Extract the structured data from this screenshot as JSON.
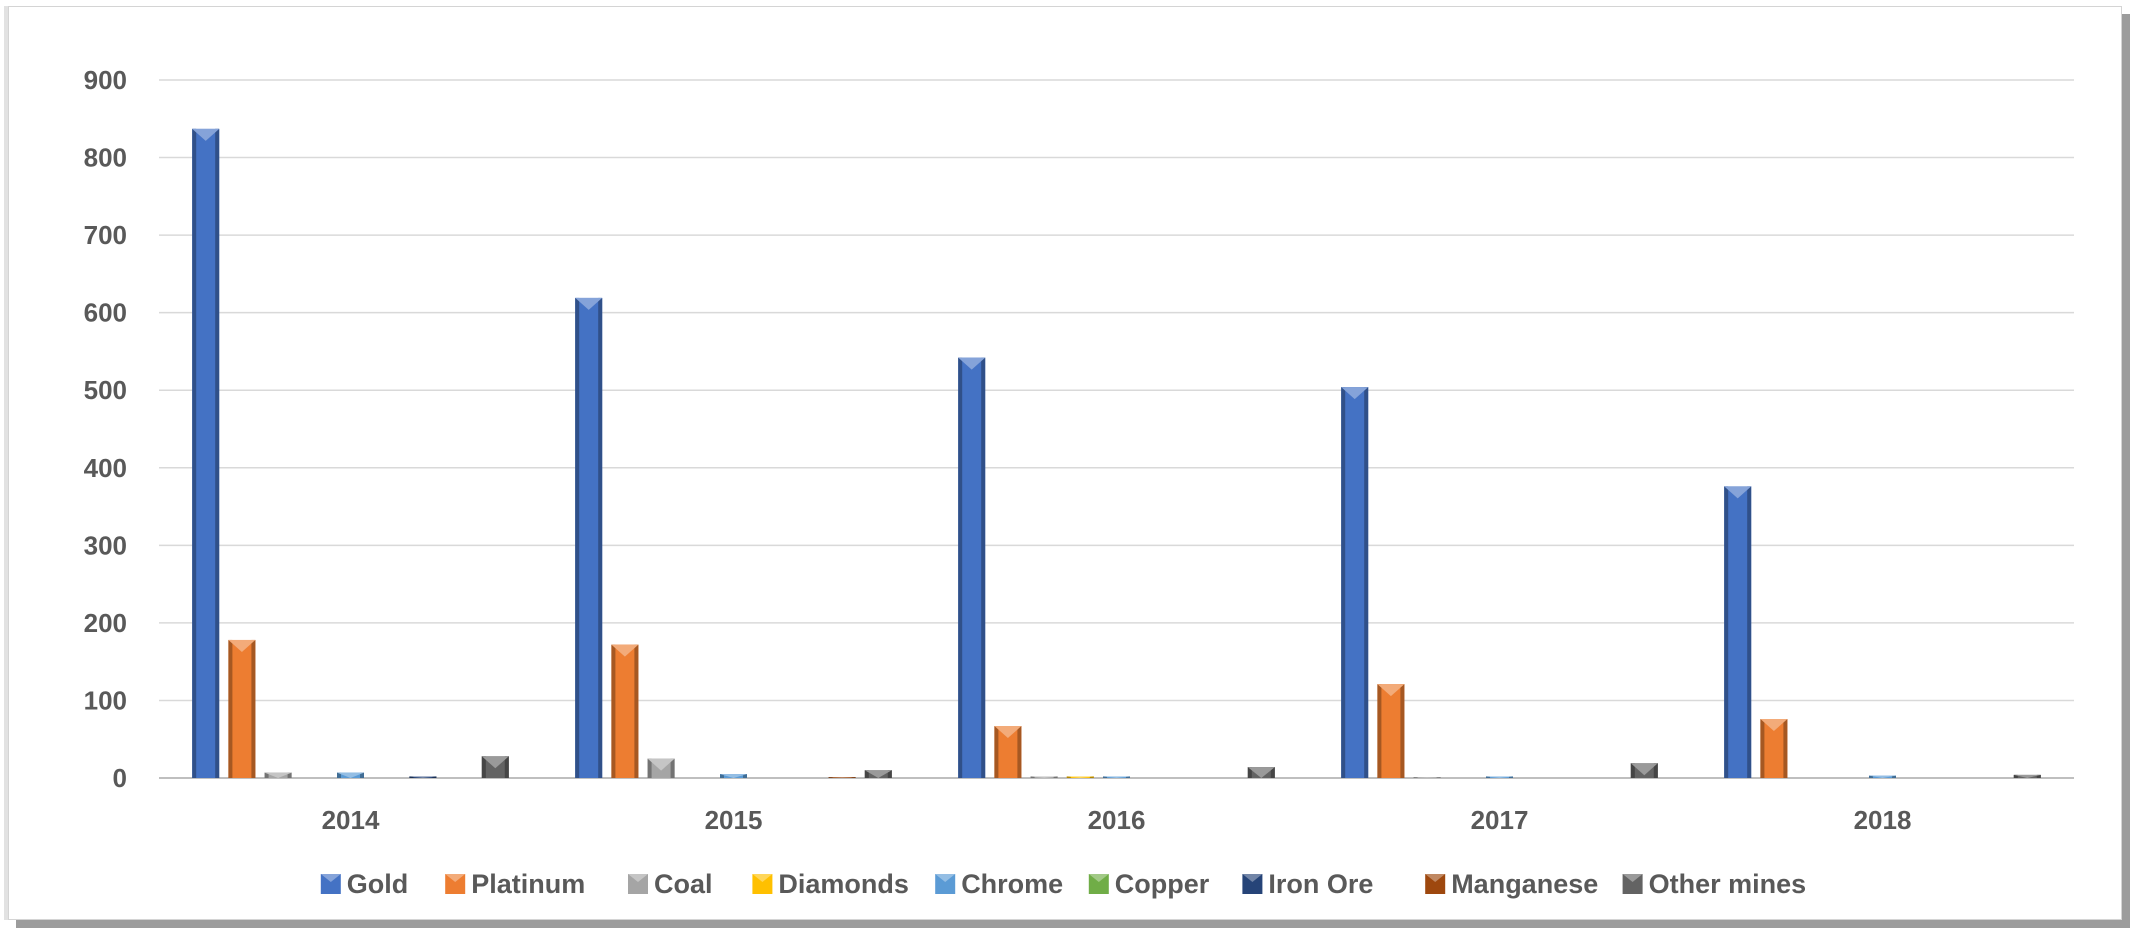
{
  "chart_data": {
    "type": "bar",
    "categories": [
      "2014",
      "2015",
      "2016",
      "2017",
      "2018"
    ],
    "ylim": [
      0,
      900
    ],
    "yticks": [
      0,
      100,
      200,
      300,
      400,
      500,
      600,
      700,
      800,
      900
    ],
    "grid": true,
    "legend_position": "bottom",
    "series": [
      {
        "name": "Gold",
        "color": "#4472C4",
        "values": [
          837,
          619,
          542,
          504,
          376
        ]
      },
      {
        "name": "Platinum",
        "color": "#ED7D31",
        "values": [
          178,
          172,
          67,
          121,
          76
        ]
      },
      {
        "name": "Coal",
        "color": "#A5A5A5",
        "values": [
          7,
          25,
          2,
          1,
          0
        ]
      },
      {
        "name": "Diamonds",
        "color": "#FFC000",
        "values": [
          0,
          0,
          2,
          0,
          0
        ]
      },
      {
        "name": "Chrome",
        "color": "#5B9BD5",
        "values": [
          7,
          5,
          2,
          2,
          3
        ]
      },
      {
        "name": "Copper",
        "color": "#70AD47",
        "values": [
          0,
          0,
          0,
          0,
          0
        ]
      },
      {
        "name": "Iron Ore",
        "color": "#264478",
        "values": [
          2,
          0,
          0,
          0,
          0
        ]
      },
      {
        "name": "Manganese",
        "color": "#9E480E",
        "values": [
          0,
          1,
          0,
          0,
          0
        ]
      },
      {
        "name": "Other mines",
        "color": "#636363",
        "values": [
          28,
          10,
          14,
          19,
          4
        ]
      }
    ]
  }
}
